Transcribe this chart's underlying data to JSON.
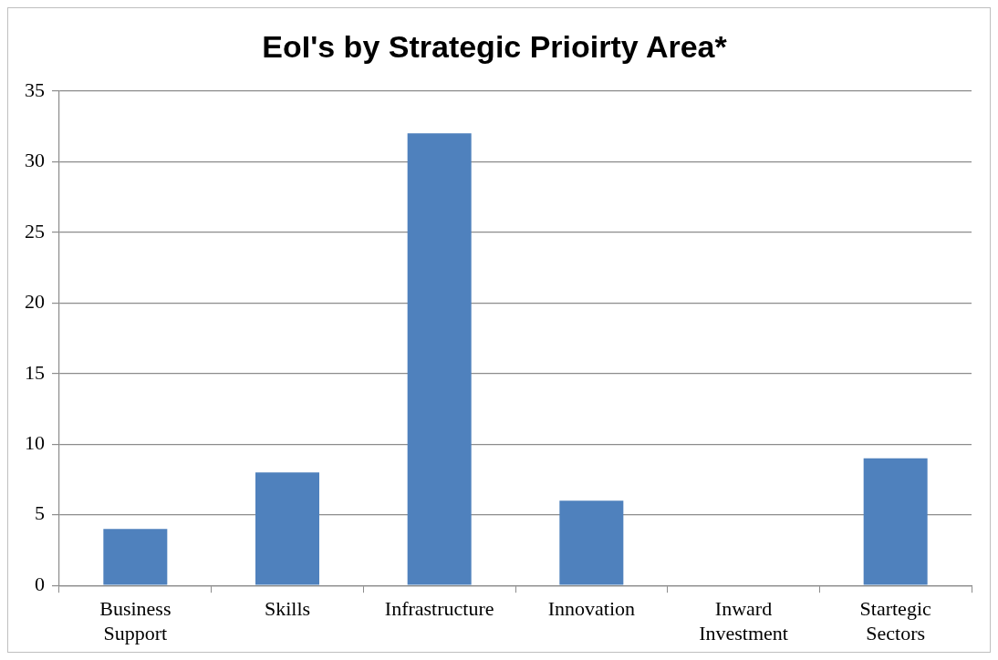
{
  "chart_data": {
    "type": "bar",
    "title": "EoI's by Strategic Prioirty Area*",
    "categories": [
      "Business Support",
      "Skills",
      "Infrastructure",
      "Innovation",
      "Inward Investment",
      "Startegic Sectors"
    ],
    "values": [
      4,
      8,
      32,
      6,
      0,
      9
    ],
    "color": "#4f81bd",
    "ylim": [
      0,
      35
    ],
    "yticks": [
      0,
      5,
      10,
      15,
      20,
      25,
      30,
      35
    ],
    "grid": "y",
    "legend": false
  }
}
